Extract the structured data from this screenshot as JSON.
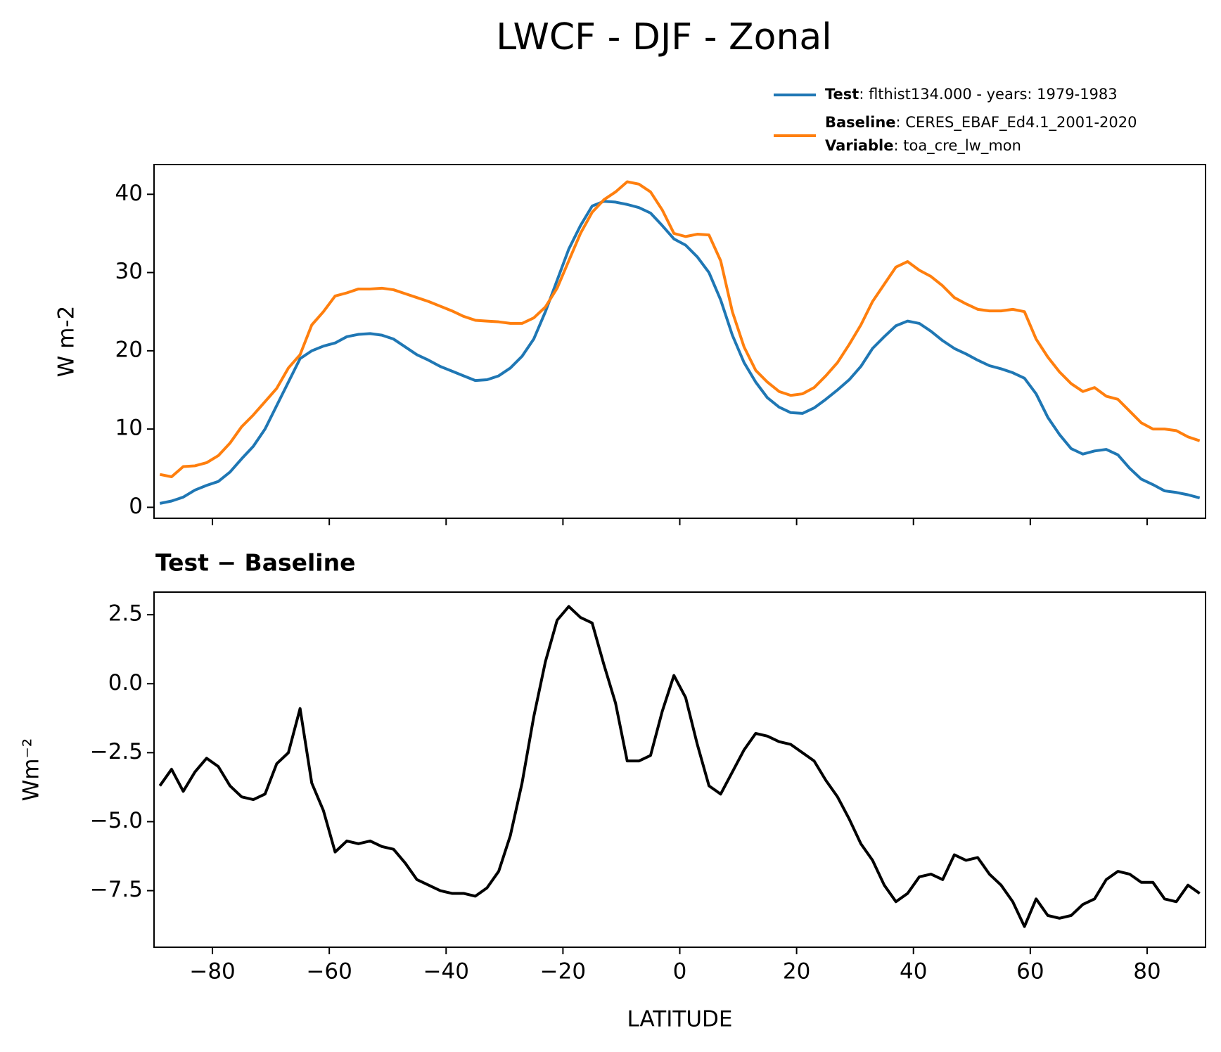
{
  "title": "LWCF - DJF - Zonal",
  "legend_note": {
    "label": "Variable",
    "text": ": toa_cre_lw_mon"
  },
  "chart_data": [
    {
      "type": "line",
      "ylabel": "W m-2",
      "xlim": [
        -90,
        90
      ],
      "xticks": [
        -80,
        -60,
        -40,
        -20,
        0,
        20,
        40,
        60,
        80
      ],
      "ylim": [
        -1.4,
        43.8
      ],
      "yticks": [
        0,
        10,
        20,
        30,
        40
      ],
      "x": [
        -89,
        -87,
        -85,
        -83,
        -81,
        -79,
        -77,
        -75,
        -73,
        -71,
        -69,
        -67,
        -65,
        -63,
        -61,
        -59,
        -57,
        -55,
        -53,
        -51,
        -49,
        -47,
        -45,
        -43,
        -41,
        -39,
        -37,
        -35,
        -33,
        -31,
        -29,
        -27,
        -25,
        -23,
        -21,
        -19,
        -17,
        -15,
        -13,
        -11,
        -9,
        -7,
        -5,
        -3,
        -1,
        1,
        3,
        5,
        7,
        9,
        11,
        13,
        15,
        17,
        19,
        21,
        23,
        25,
        27,
        29,
        31,
        33,
        35,
        37,
        39,
        41,
        43,
        45,
        47,
        49,
        51,
        53,
        55,
        57,
        59,
        61,
        63,
        65,
        67,
        69,
        71,
        73,
        75,
        77,
        79,
        81,
        83,
        85,
        87,
        89
      ],
      "series": [
        {
          "name": "Test",
          "description": ": flthist134.000 - years: 1979-1983",
          "color": "#1f77b4",
          "values": [
            0.5,
            0.8,
            1.3,
            2.2,
            2.8,
            3.3,
            4.5,
            6.2,
            7.8,
            10,
            13,
            16,
            19,
            20,
            20.6,
            21,
            21.8,
            22.1,
            22.2,
            22,
            21.5,
            20.5,
            19.5,
            18.8,
            18,
            17.4,
            16.8,
            16.2,
            16.3,
            16.8,
            17.8,
            19.3,
            21.5,
            25,
            29,
            33,
            36,
            38.5,
            39.1,
            39,
            38.7,
            38.3,
            37.6,
            36,
            34.3,
            33.5,
            32,
            30,
            26.5,
            22,
            18.5,
            16,
            14,
            12.8,
            12.1,
            12,
            12.7,
            13.8,
            15,
            16.3,
            18,
            20.3,
            21.8,
            23.2,
            23.8,
            23.5,
            22.5,
            21.3,
            20.3,
            19.6,
            18.8,
            18.1,
            17.7,
            17.2,
            16.5,
            14.5,
            11.5,
            9.3,
            7.5,
            6.8,
            7.2,
            7.4,
            6.7,
            5,
            3.6,
            2.9,
            2.1,
            1.9,
            1.6,
            1.2
          ]
        },
        {
          "name": "Baseline",
          "description": ": CERES_EBAF_Ed4.1_2001-2020",
          "color": "#ff7f0e",
          "values": [
            4.2,
            3.9,
            5.2,
            5.3,
            5.7,
            6.6,
            8.2,
            10.3,
            11.8,
            13.5,
            15.2,
            17.8,
            19.5,
            23.3,
            25,
            27,
            27.4,
            27.9,
            27.9,
            28,
            27.8,
            27.3,
            26.8,
            26.3,
            25.7,
            25.1,
            24.4,
            23.9,
            23.8,
            23.7,
            23.5,
            23.5,
            24.2,
            25.6,
            28,
            31.5,
            35,
            37.7,
            39.3,
            40.3,
            41.6,
            41.3,
            40.3,
            38,
            35,
            34.6,
            34.9,
            34.8,
            31.5,
            25,
            20.5,
            17.5,
            16,
            14.8,
            14.3,
            14.5,
            15.3,
            16.8,
            18.5,
            20.8,
            23.3,
            26.3,
            28.5,
            30.7,
            31.4,
            30.3,
            29.5,
            28.3,
            26.8,
            26,
            25.3,
            25.1,
            25.1,
            25.3,
            25,
            21.5,
            19.2,
            17.3,
            15.8,
            14.8,
            15.3,
            14.2,
            13.8,
            12.3,
            10.8,
            10,
            10,
            9.8,
            9,
            8.5
          ]
        }
      ]
    },
    {
      "type": "line",
      "title": "Test − Baseline",
      "ylabel": "Wm⁻²",
      "xlabel": "LATITUDE",
      "xlim": [
        -90,
        90
      ],
      "xticks": [
        {
          "value": -80,
          "label": "−80"
        },
        {
          "value": -60,
          "label": "−60"
        },
        {
          "value": -40,
          "label": "−40"
        },
        {
          "value": -20,
          "label": "−20"
        },
        0,
        20,
        40,
        60,
        80
      ],
      "ylim": [
        -9.55,
        3.32
      ],
      "yticks": [
        2.5,
        {
          "value": 0,
          "label": "0.0"
        },
        {
          "value": -2.5,
          "label": "−2.5"
        },
        {
          "value": -5,
          "label": "−5.0"
        },
        {
          "value": -7.5,
          "label": "−7.5"
        }
      ],
      "x": [
        -89,
        -87,
        -85,
        -83,
        -81,
        -79,
        -77,
        -75,
        -73,
        -71,
        -69,
        -67,
        -65,
        -63,
        -61,
        -59,
        -57,
        -55,
        -53,
        -51,
        -49,
        -47,
        -45,
        -43,
        -41,
        -39,
        -37,
        -35,
        -33,
        -31,
        -29,
        -27,
        -25,
        -23,
        -21,
        -19,
        -17,
        -15,
        -13,
        -11,
        -9,
        -7,
        -5,
        -3,
        -1,
        1,
        3,
        5,
        7,
        9,
        11,
        13,
        15,
        17,
        19,
        21,
        23,
        25,
        27,
        29,
        31,
        33,
        35,
        37,
        39,
        41,
        43,
        45,
        47,
        49,
        51,
        53,
        55,
        57,
        59,
        61,
        63,
        65,
        67,
        69,
        71,
        73,
        75,
        77,
        79,
        81,
        83,
        85,
        87,
        89
      ],
      "series": [
        {
          "color": "#000000",
          "values": [
            -3.7,
            -3.1,
            -3.9,
            -3.2,
            -2.7,
            -3.0,
            -3.7,
            -4.1,
            -4.2,
            -4.0,
            -2.9,
            -2.5,
            -0.9,
            -3.6,
            -4.6,
            -6.1,
            -5.7,
            -5.8,
            -5.7,
            -5.9,
            -6.0,
            -6.5,
            -7.1,
            -7.3,
            -7.5,
            -7.6,
            -7.6,
            -7.7,
            -7.4,
            -6.8,
            -5.5,
            -3.6,
            -1.2,
            0.8,
            2.3,
            2.8,
            2.4,
            2.2,
            0.7,
            -0.7,
            -2.8,
            -2.8,
            -2.6,
            -1.0,
            0.3,
            -0.5,
            -2.2,
            -3.7,
            -4.0,
            -3.2,
            -2.4,
            -1.8,
            -1.9,
            -2.1,
            -2.2,
            -2.5,
            -2.8,
            -3.5,
            -4.1,
            -4.9,
            -5.8,
            -6.4,
            -7.3,
            -7.9,
            -7.6,
            -7.0,
            -6.9,
            -7.1,
            -6.2,
            -6.4,
            -6.3,
            -6.9,
            -7.3,
            -7.9,
            -8.8,
            -7.8,
            -8.4,
            -8.5,
            -8.4,
            -8.0,
            -7.8,
            -7.1,
            -6.8,
            -6.9,
            -7.2,
            -7.2,
            -7.8,
            -7.9,
            -7.3,
            -7.6
          ]
        }
      ]
    }
  ]
}
